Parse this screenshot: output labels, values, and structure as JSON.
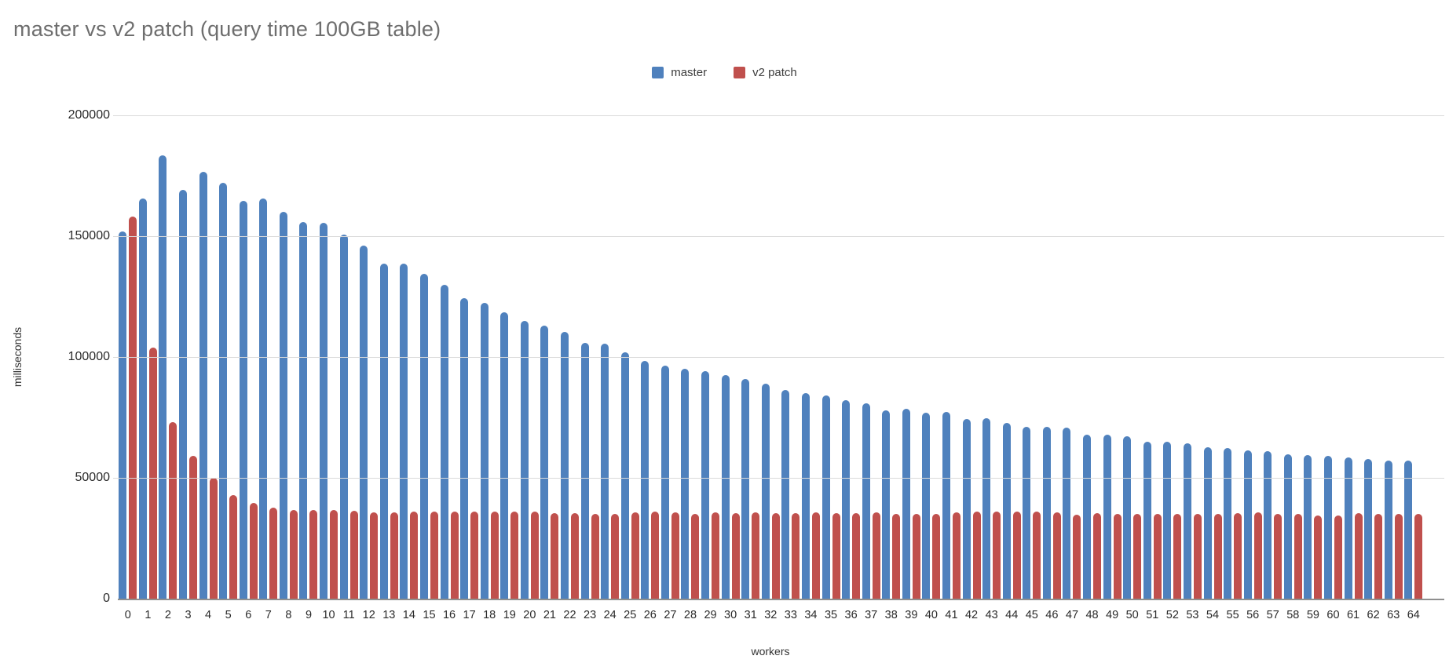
{
  "chart_data": {
    "type": "bar",
    "title": "master vs v2 patch (query time 100GB table)",
    "xlabel": "workers",
    "ylabel": "milliseconds",
    "x": [
      0,
      1,
      2,
      3,
      4,
      5,
      6,
      7,
      8,
      9,
      10,
      11,
      12,
      13,
      14,
      15,
      16,
      17,
      18,
      19,
      20,
      21,
      22,
      23,
      24,
      25,
      26,
      27,
      28,
      29,
      30,
      31,
      32,
      33,
      34,
      35,
      36,
      37,
      38,
      39,
      40,
      41,
      42,
      43,
      44,
      45,
      46,
      47,
      48,
      49,
      50,
      51,
      52,
      53,
      54,
      55,
      56,
      57,
      58,
      59,
      60,
      61,
      62,
      63,
      64
    ],
    "ylim": [
      0,
      200000
    ],
    "yticks": [
      0,
      50000,
      100000,
      150000,
      200000
    ],
    "grid": true,
    "legend_position": "top-center",
    "series": [
      {
        "name": "master",
        "color": "#4f81bd",
        "values": [
          152000,
          165500,
          183500,
          169000,
          176500,
          172000,
          164500,
          165500,
          160000,
          156000,
          155500,
          150500,
          146000,
          138500,
          138500,
          134500,
          130000,
          124500,
          122500,
          118500,
          115000,
          113000,
          110500,
          106000,
          105500,
          102000,
          98500,
          96500,
          95000,
          94000,
          92500,
          91000,
          89000,
          86500,
          85000,
          84000,
          82000,
          81000,
          78000,
          78500,
          77000,
          77200,
          74500,
          74700,
          72700,
          71200,
          71200,
          70900,
          67700,
          67700,
          67300,
          65100,
          65100,
          64400,
          62700,
          62200,
          61400,
          60900,
          59800,
          59300,
          59000,
          58500,
          57900,
          57000,
          57300
        ]
      },
      {
        "name": "v2 patch",
        "color": "#c0504d",
        "values": [
          158000,
          104000,
          73000,
          59000,
          50000,
          43000,
          39500,
          37700,
          36800,
          36700,
          36800,
          36500,
          35800,
          35800,
          36000,
          36000,
          36200,
          36000,
          36000,
          36000,
          36200,
          35300,
          35500,
          35200,
          35200,
          35700,
          36200,
          35600,
          35200,
          35700,
          35500,
          35700,
          35400,
          35500,
          35700,
          35500,
          35400,
          35700,
          35200,
          35100,
          35200,
          35700,
          36000,
          35900,
          36000,
          35900,
          35700,
          34900,
          35400,
          35200,
          35100,
          35000,
          35000,
          35200,
          35100,
          35500,
          35600,
          35200,
          35100,
          34300,
          34300,
          35500,
          35200,
          35000,
          35100
        ]
      }
    ],
    "style_colors": {
      "background": "#ffffff",
      "title_text": "#6e6e6e",
      "gridline": "#dadada",
      "axis_line": "#8f8f8f",
      "tick_text": "#2b2b2b"
    }
  }
}
